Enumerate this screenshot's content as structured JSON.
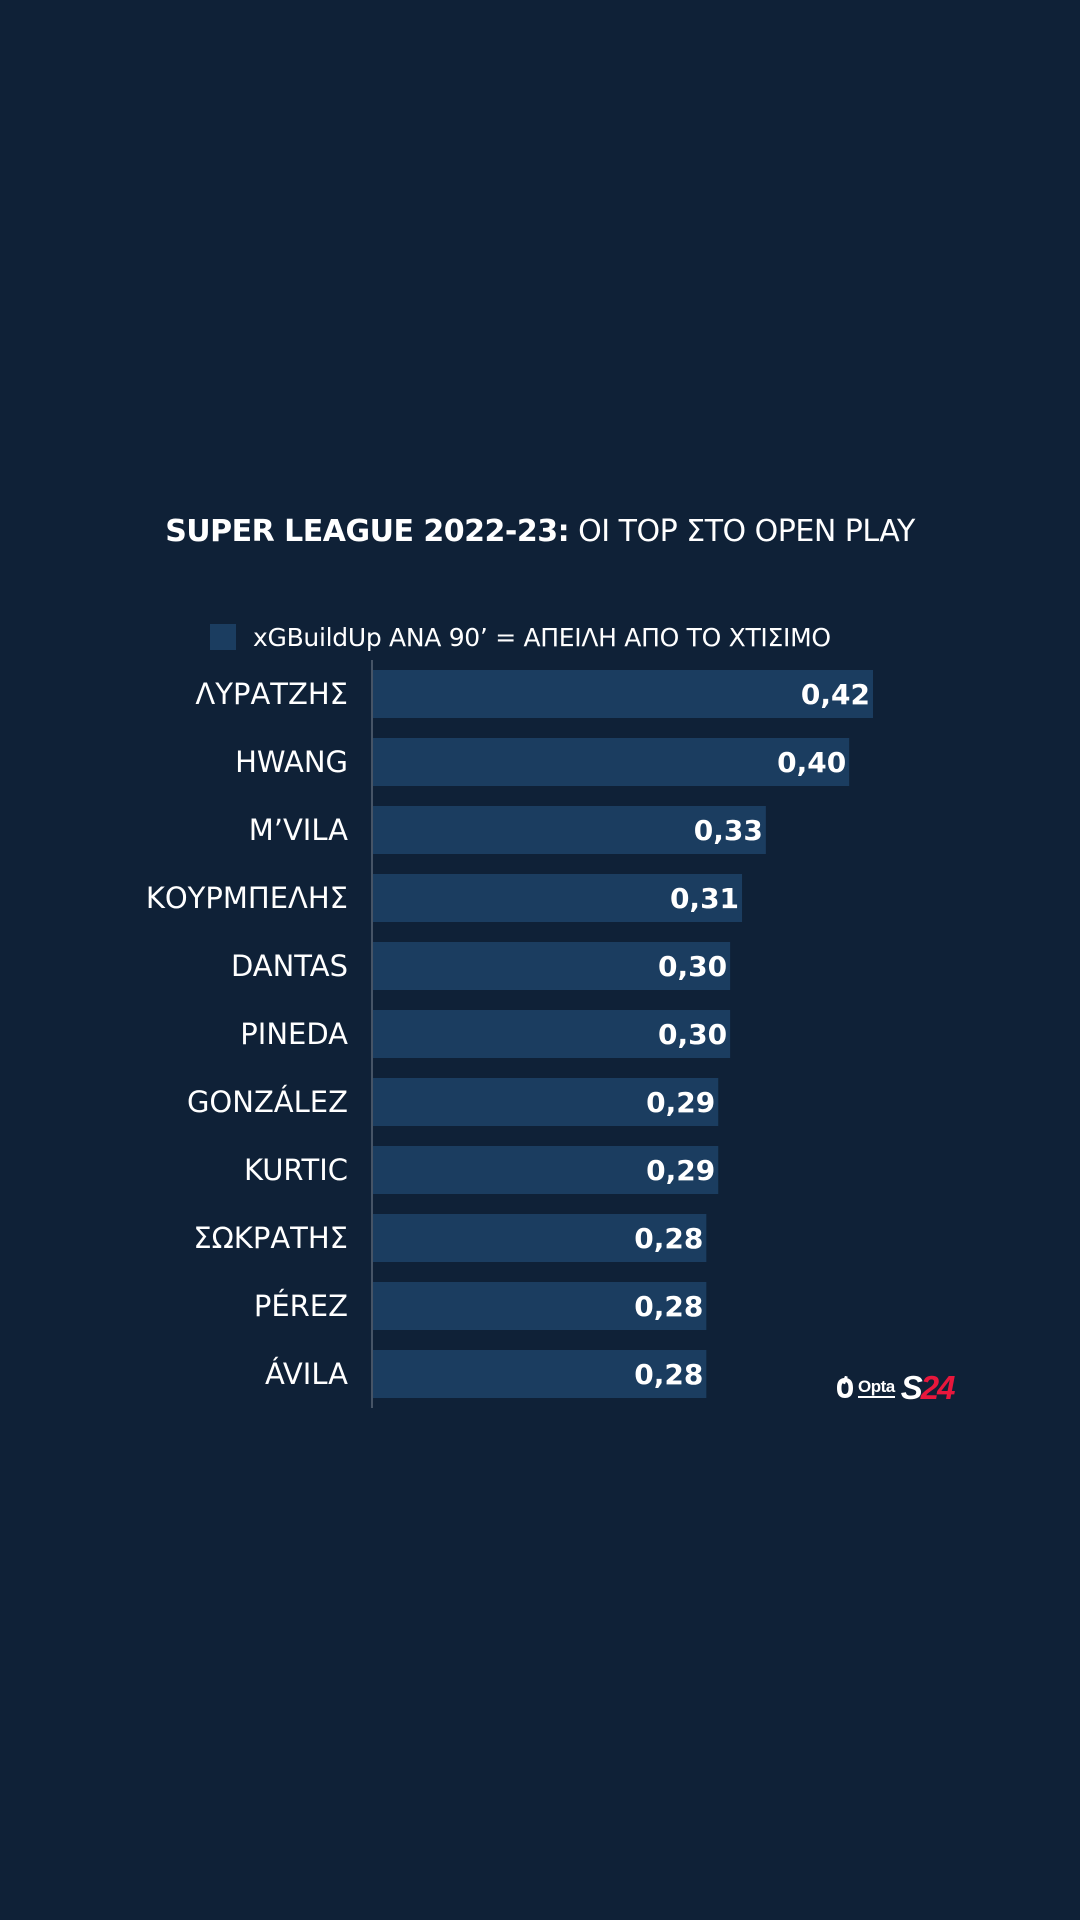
{
  "chart_data": {
    "type": "bar",
    "orientation": "horizontal",
    "title_bold": "SUPER LEAGUE 2022-23:",
    "title_light": "ΟΙ ΤΟΡ ΣΤΟ OPEN PLAY",
    "legend": "xGBuildUp ΑΝΑ 90’ = ΑΠΕΙΛΗ ΑΠΟ ΤΟ ΧΤΙΣΙΜΟ",
    "categories": [
      "ΛΥΡΑΤΖΗΣ",
      "HWANG",
      "M’VILA",
      "ΚΟΥΡΜΠΕΛΗΣ",
      "DANTAS",
      "PINEDA",
      "GONZÁLEZ",
      "KURTIC",
      "ΣΩΚΡΑΤΗΣ",
      "PÉREZ",
      "ÁVILA"
    ],
    "values": [
      0.42,
      0.4,
      0.33,
      0.31,
      0.3,
      0.3,
      0.29,
      0.29,
      0.28,
      0.28,
      0.28
    ],
    "value_labels": [
      "0,42",
      "0,40",
      "0,33",
      "0,31",
      "0,30",
      "0,30",
      "0,29",
      "0,29",
      "0,28",
      "0,28",
      "0,28"
    ],
    "xlim": [
      0,
      0.42
    ],
    "xlabel": "",
    "ylabel": "",
    "grid": false,
    "legend_placement": "top"
  },
  "colors": {
    "background": "#0f2137",
    "bar": "#1b3d60",
    "axis": "#7d8796",
    "text": "#ffffff",
    "brand_accent": "#e8173c"
  },
  "logos": {
    "opta": "Opta",
    "s24_s": "S",
    "s24_num": "24"
  }
}
